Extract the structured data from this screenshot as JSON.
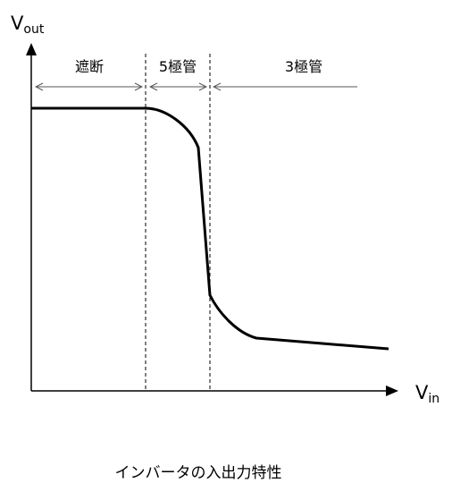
{
  "axes": {
    "y_label": {
      "main": "V",
      "sub": "out"
    },
    "x_label": {
      "main": "V",
      "sub": "in"
    }
  },
  "regions": [
    {
      "label": "遮断"
    },
    {
      "label": "5極管"
    },
    {
      "label": "3極管"
    }
  ],
  "caption": "インバータの入出力特性"
}
